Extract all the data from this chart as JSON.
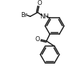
{
  "bg_color": "#ffffff",
  "line_color": "#1a1a1a",
  "text_color": "#1a1a1a",
  "figsize": [
    1.14,
    0.96
  ],
  "dpi": 100,
  "bond_lw": 1.1,
  "font_size": 6.2,
  "xlim": [
    0,
    114
  ],
  "ylim": [
    0,
    96
  ]
}
